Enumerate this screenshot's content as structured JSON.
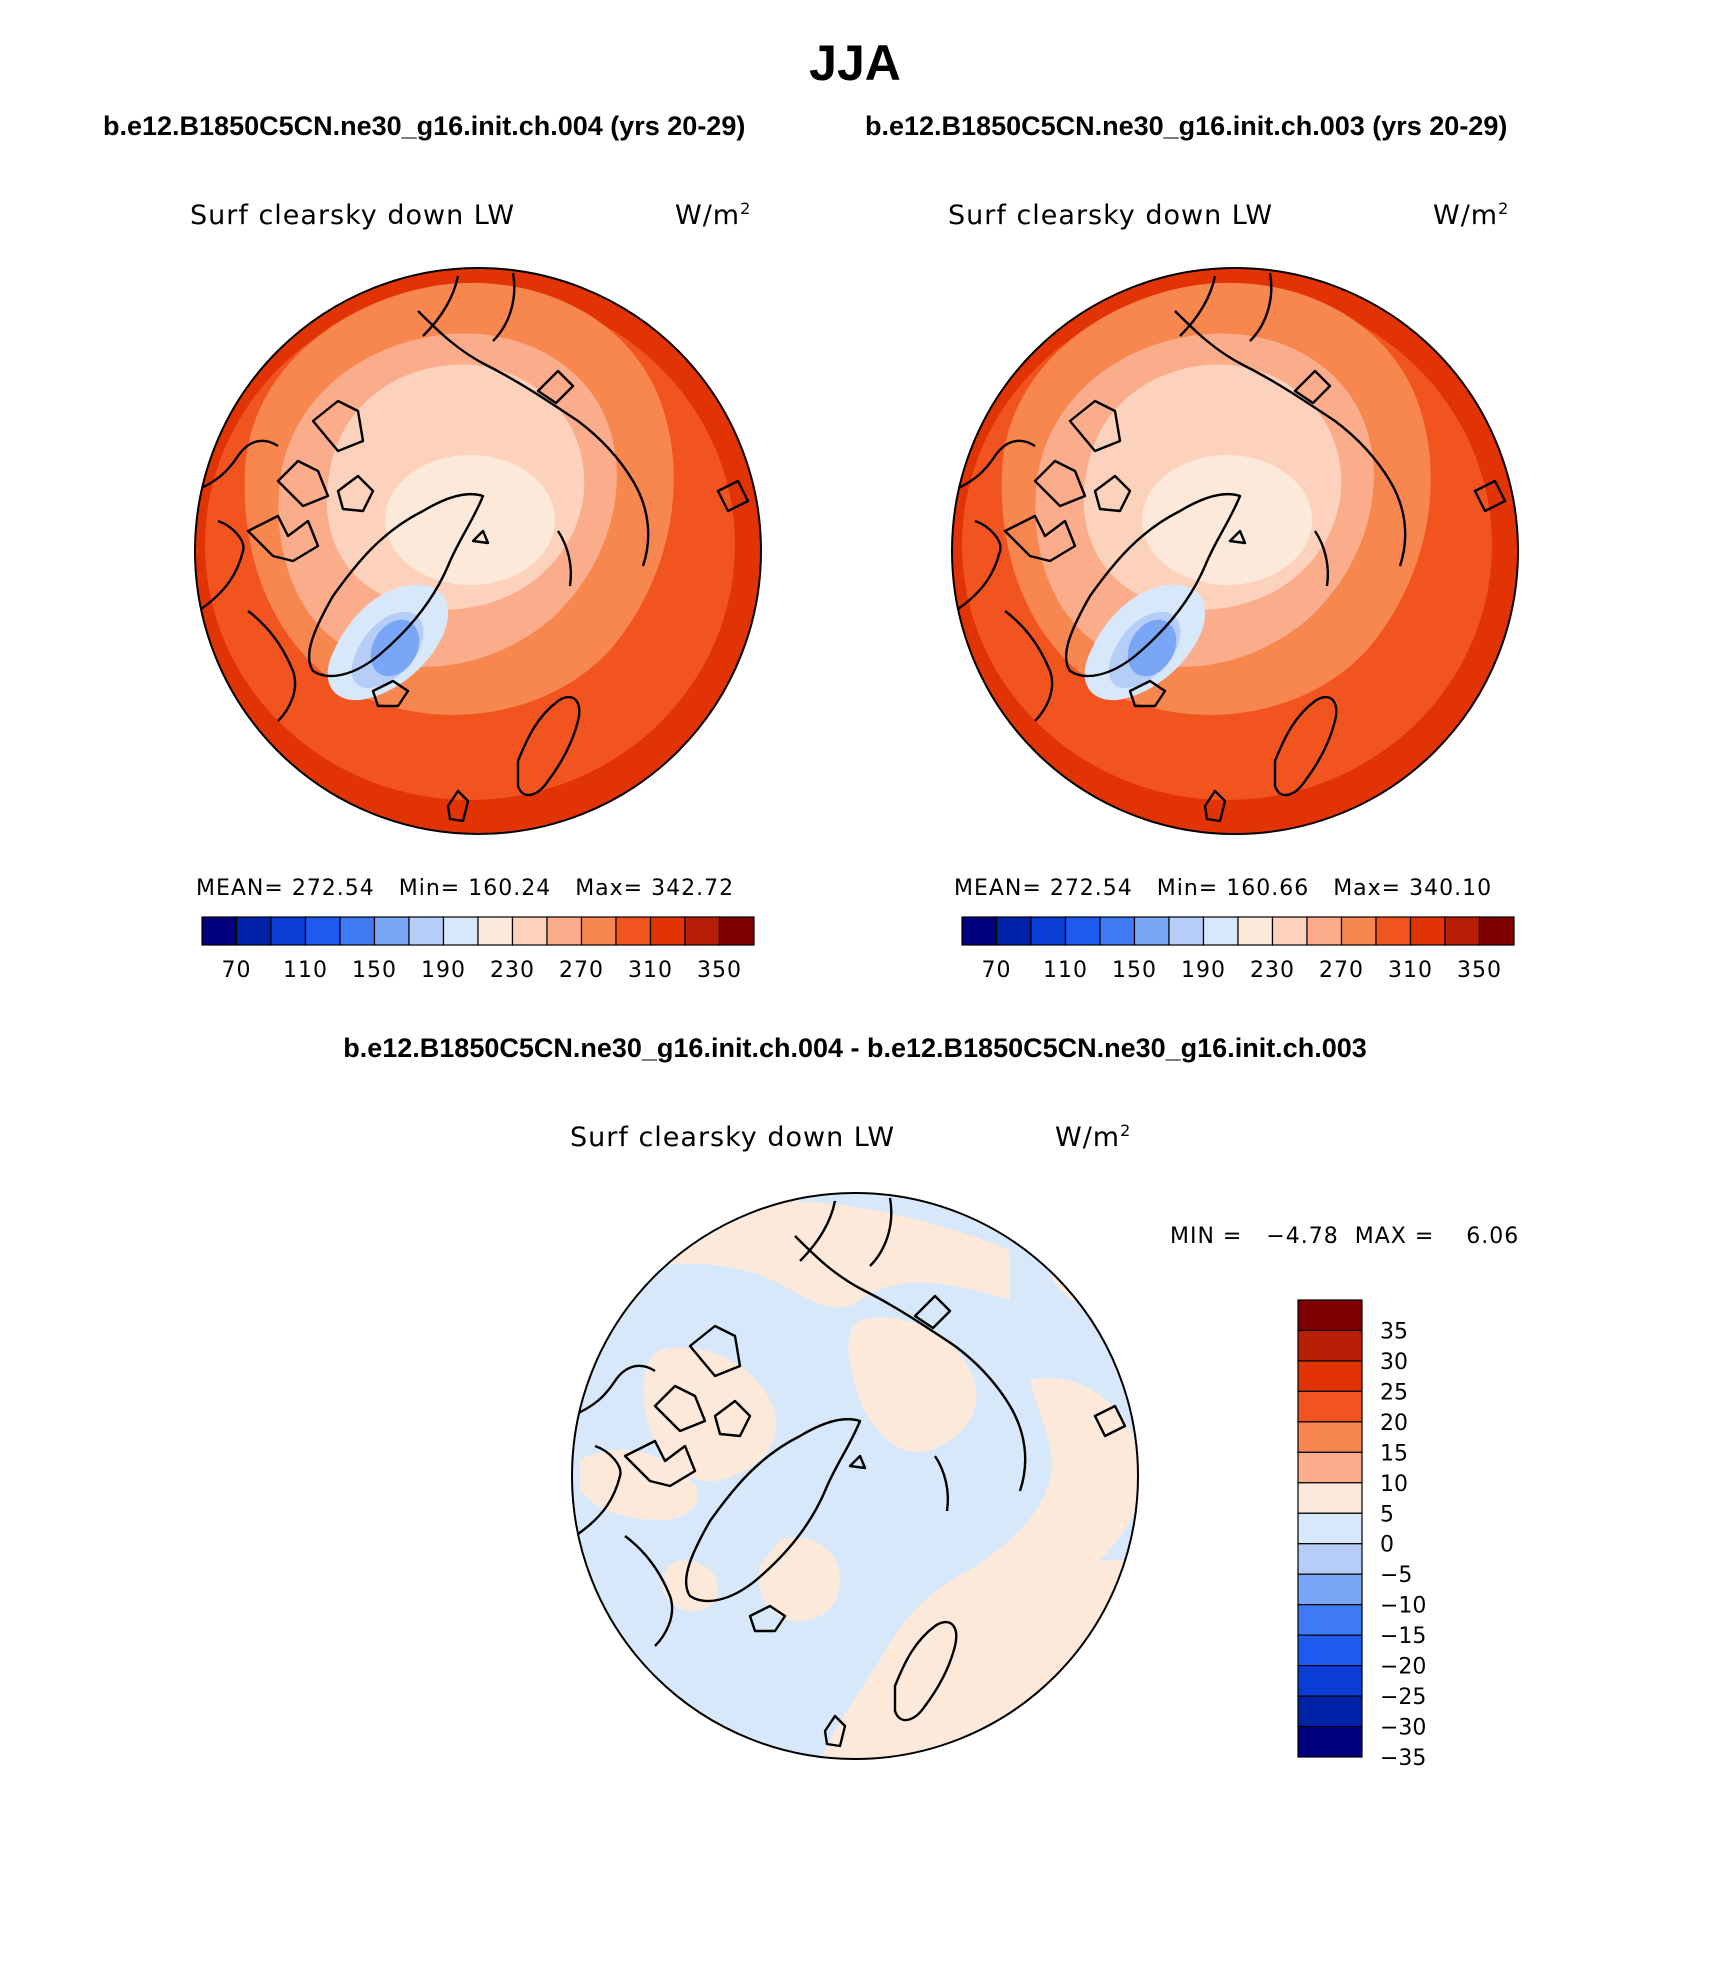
{
  "title": "JJA",
  "case_a": "b.e12.B1850C5CN.ne30_g16.init.ch.004 (yrs 20-29)",
  "case_b": "b.e12.B1850C5CN.ne30_g16.init.ch.003 (yrs 20-29)",
  "diff_title": "b.e12.B1850C5CN.ne30_g16.init.ch.004 - b.e12.B1850C5CN.ne30_g16.init.ch.003",
  "variable": "Surf clearsky down LW",
  "units_base": "W/m",
  "units_exp": "2",
  "panel_a": {
    "stats": "MEAN= 272.54   Min= 160.24   Max= 342.72"
  },
  "panel_b": {
    "stats": "MEAN= 272.54   Min= 160.66   Max= 340.10"
  },
  "diff": {
    "minmax": "MIN =   −4.78  MAX =    6.06"
  },
  "colorbar_abs": {
    "colors": [
      "#00007f",
      "#0022a8",
      "#0a3dd6",
      "#1e5af0",
      "#3e7af5",
      "#7aa6f7",
      "#b6cdf8",
      "#d8e8fb",
      "#fde9da",
      "#fcd2bd",
      "#fbad8b",
      "#f8864f",
      "#f25420",
      "#e23305",
      "#b81e05",
      "#7f0000"
    ],
    "labels": [
      "70",
      "110",
      "150",
      "190",
      "230",
      "270",
      "310",
      "350"
    ]
  },
  "colorbar_diff": {
    "colors": [
      "#7f0000",
      "#b81e05",
      "#e23305",
      "#f25420",
      "#f8864f",
      "#fbad8b",
      "#fde9da",
      "#d8e8fb",
      "#b6cdf8",
      "#7aa6f7",
      "#3e7af5",
      "#1e5af0",
      "#0a3dd6",
      "#0022a8",
      "#00007f"
    ],
    "labels": [
      "35",
      "30",
      "25",
      "20",
      "15",
      "10",
      "5",
      "0",
      "−5",
      "−10",
      "−15",
      "−20",
      "−25",
      "−30",
      "−35"
    ]
  },
  "map_fills": {
    "outer": "#e23305",
    "ring2": "#f25420",
    "ring3": "#f8864f",
    "ring4": "#fbad8b",
    "inner": "#fcd2bd",
    "core": "#fde9da",
    "ice1": "#d8e8fb",
    "ice2": "#b6cdf8",
    "ice3": "#7aa6f7",
    "diff_neg": "#d8e8fb",
    "diff_pos": "#fde9da"
  }
}
